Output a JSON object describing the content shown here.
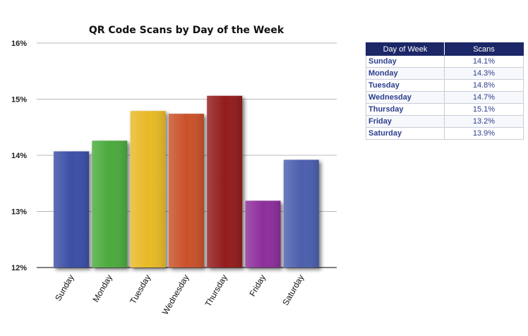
{
  "chart_data": {
    "type": "bar",
    "title": "QR Code Scans by Day of the Week",
    "xlabel": "",
    "ylabel": "",
    "categories": [
      "Sunday",
      "Monday",
      "Tuesday",
      "Wednesday",
      "Thursday",
      "Friday",
      "Saturday"
    ],
    "values": [
      14.07,
      14.26,
      14.79,
      14.74,
      15.06,
      13.19,
      13.92
    ],
    "ylim": [
      12,
      16
    ],
    "yticks": [
      12,
      13,
      14,
      15,
      16
    ],
    "ytick_labels": [
      "12%",
      "13%",
      "14%",
      "15%",
      "16%"
    ],
    "grid": true,
    "legend": "none",
    "bar_colors": [
      "#3a50a6",
      "#4caa3e",
      "#e8b925",
      "#c9512a",
      "#931e1c",
      "#8d2d9b",
      "#4b5fae"
    ]
  },
  "table": {
    "headers": [
      "Day of Week",
      "Scans"
    ],
    "rows": [
      [
        "Sunday",
        "14.1%"
      ],
      [
        "Monday",
        "14.3%"
      ],
      [
        "Tuesday",
        "14.8%"
      ],
      [
        "Wednesday",
        "14.7%"
      ],
      [
        "Thursday",
        "15.1%"
      ],
      [
        "Friday",
        "13.2%"
      ],
      [
        "Saturday",
        "13.9%"
      ]
    ]
  }
}
